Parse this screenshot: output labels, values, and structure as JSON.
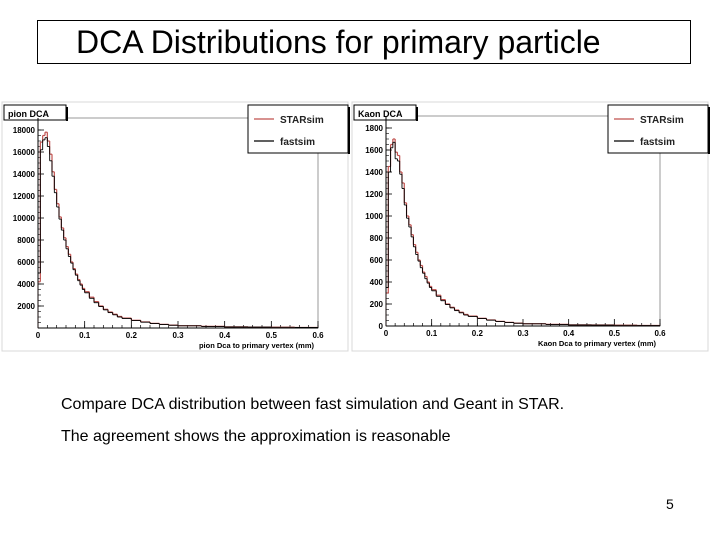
{
  "slide": {
    "title": "DCA Distributions for primary particle",
    "caption_line1": "Compare DCA distribution between fast simulation and Geant in STAR.",
    "caption_line2": "The agreement shows the approximation is reasonable",
    "page_number": "5"
  },
  "chart_data": [
    {
      "type": "bar",
      "title": "pion DCA",
      "xlabel": "pion Dca to primary vertex (mm)",
      "ylabel": "",
      "xlim": [
        0,
        0.6
      ],
      "ylim": [
        0,
        18000
      ],
      "xticks": [
        0,
        0.1,
        0.2,
        0.3,
        0.4,
        0.5,
        0.6
      ],
      "xtick_labels": [
        "0",
        "0.1",
        "0.2",
        "0.3",
        "0.4",
        "0.5",
        "0.6"
      ],
      "yticks": [
        2000,
        4000,
        6000,
        8000,
        10000,
        12000,
        14000,
        16000,
        18000
      ],
      "ytick_labels": [
        "2000",
        "4000",
        "6000",
        "8000",
        "10000",
        "12000",
        "14000",
        "16000",
        "18000"
      ],
      "grid": false,
      "legend": "top-right",
      "series": [
        {
          "name": "STARsim",
          "color": "#c0504d",
          "x": [
            0.0,
            0.005,
            0.01,
            0.015,
            0.02,
            0.025,
            0.03,
            0.035,
            0.04,
            0.045,
            0.05,
            0.055,
            0.06,
            0.065,
            0.07,
            0.075,
            0.08,
            0.085,
            0.09,
            0.095,
            0.1,
            0.11,
            0.12,
            0.13,
            0.14,
            0.15,
            0.16,
            0.17,
            0.18,
            0.2,
            0.22,
            0.24,
            0.26,
            0.28,
            0.3,
            0.35,
            0.4,
            0.45,
            0.5,
            0.55
          ],
          "values": [
            4200,
            16900,
            17500,
            17800,
            17000,
            15800,
            14200,
            12600,
            11300,
            10100,
            9100,
            8200,
            7400,
            6700,
            6000,
            5400,
            4900,
            4400,
            4000,
            3600,
            3300,
            2800,
            2400,
            2000,
            1700,
            1450,
            1250,
            1050,
            900,
            700,
            550,
            420,
            330,
            260,
            210,
            150,
            110,
            85,
            65,
            50
          ]
        },
        {
          "name": "fastsim",
          "color": "#000000",
          "x": [
            0.0,
            0.005,
            0.01,
            0.015,
            0.02,
            0.025,
            0.03,
            0.035,
            0.04,
            0.045,
            0.05,
            0.055,
            0.06,
            0.065,
            0.07,
            0.075,
            0.08,
            0.085,
            0.09,
            0.095,
            0.1,
            0.11,
            0.12,
            0.13,
            0.14,
            0.15,
            0.16,
            0.17,
            0.18,
            0.2,
            0.22,
            0.24,
            0.26,
            0.28,
            0.3,
            0.35,
            0.4,
            0.45,
            0.5,
            0.55
          ],
          "values": [
            5000,
            16200,
            17100,
            17300,
            16500,
            15200,
            13800,
            12300,
            11000,
            9900,
            8900,
            8000,
            7200,
            6500,
            5900,
            5300,
            4800,
            4300,
            3900,
            3500,
            3200,
            2700,
            2300,
            1950,
            1650,
            1400,
            1200,
            1000,
            870,
            680,
            530,
            410,
            320,
            250,
            200,
            140,
            100,
            80,
            60,
            45
          ]
        }
      ]
    },
    {
      "type": "bar",
      "title": "Kaon DCA",
      "xlabel": "Kaon Dca to primary vertex (mm)",
      "ylabel": "",
      "xlim": [
        0,
        0.6
      ],
      "ylim": [
        0,
        1800
      ],
      "xticks": [
        0,
        0.1,
        0.2,
        0.3,
        0.4,
        0.5,
        0.6
      ],
      "xtick_labels": [
        "0",
        "0.1",
        "0.2",
        "0.3",
        "0.4",
        "0.5",
        "0.6"
      ],
      "yticks": [
        0,
        200,
        400,
        600,
        800,
        1000,
        1200,
        1400,
        1600,
        1800
      ],
      "ytick_labels": [
        "0",
        "200",
        "400",
        "600",
        "800",
        "1000",
        "1200",
        "1400",
        "1600",
        "1800"
      ],
      "grid": false,
      "legend": "top-right",
      "series": [
        {
          "name": "STARsim",
          "color": "#c0504d",
          "x": [
            0.0,
            0.005,
            0.01,
            0.015,
            0.02,
            0.025,
            0.03,
            0.035,
            0.04,
            0.045,
            0.05,
            0.055,
            0.06,
            0.065,
            0.07,
            0.075,
            0.08,
            0.085,
            0.09,
            0.095,
            0.1,
            0.11,
            0.12,
            0.13,
            0.14,
            0.15,
            0.16,
            0.17,
            0.18,
            0.2,
            0.22,
            0.24,
            0.26,
            0.28,
            0.3,
            0.35,
            0.4,
            0.45,
            0.5,
            0.55
          ],
          "values": [
            300,
            1450,
            1650,
            1700,
            1580,
            1550,
            1400,
            1300,
            1120,
            1000,
            920,
            830,
            740,
            670,
            600,
            550,
            490,
            450,
            400,
            360,
            330,
            280,
            240,
            200,
            170,
            145,
            125,
            105,
            90,
            70,
            55,
            42,
            33,
            26,
            21,
            15,
            11,
            9,
            7,
            5
          ]
        },
        {
          "name": "fastsim",
          "color": "#000000",
          "x": [
            0.0,
            0.005,
            0.01,
            0.015,
            0.02,
            0.025,
            0.03,
            0.035,
            0.04,
            0.045,
            0.05,
            0.055,
            0.06,
            0.065,
            0.07,
            0.075,
            0.08,
            0.085,
            0.09,
            0.095,
            0.1,
            0.11,
            0.12,
            0.13,
            0.14,
            0.15,
            0.16,
            0.17,
            0.18,
            0.2,
            0.22,
            0.24,
            0.26,
            0.28,
            0.3,
            0.35,
            0.4,
            0.45,
            0.5,
            0.55
          ],
          "values": [
            350,
            1400,
            1620,
            1670,
            1520,
            1500,
            1380,
            1250,
            1100,
            980,
            900,
            810,
            720,
            650,
            590,
            530,
            480,
            430,
            390,
            350,
            320,
            270,
            230,
            195,
            165,
            140,
            120,
            100,
            87,
            68,
            53,
            41,
            32,
            25,
            20,
            14,
            10,
            8,
            6,
            4
          ]
        }
      ]
    }
  ]
}
